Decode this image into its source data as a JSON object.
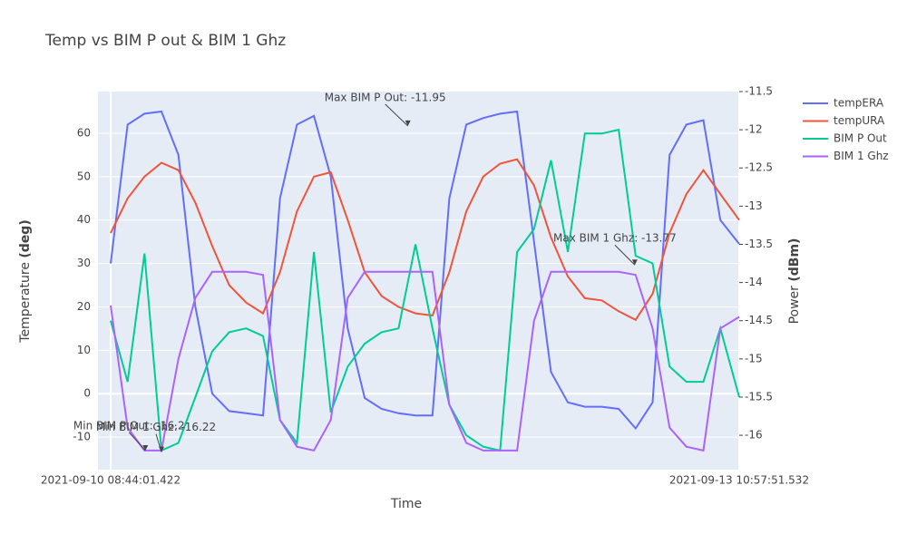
{
  "chart_data": {
    "type": "line",
    "title": "Temp vs BIM P out & BIM 1 Ghz",
    "xlabel": "Time",
    "ylabel": {
      "text": "Temperature",
      "unit": "(deg)"
    },
    "y2label": {
      "text": "Power",
      "unit": "(dBm)"
    },
    "x": [
      "2021-09-10 08:44:01.422",
      "2021-09-10 10:44",
      "2021-09-10 12:44",
      "2021-09-10 14:44",
      "2021-09-10 16:44",
      "2021-09-10 18:44",
      "2021-09-10 20:44",
      "2021-09-10 22:44",
      "2021-09-11 00:44",
      "2021-09-11 02:44",
      "2021-09-11 04:44",
      "2021-09-11 06:44",
      "2021-09-11 08:44",
      "2021-09-11 10:44",
      "2021-09-11 12:44",
      "2021-09-11 14:44",
      "2021-09-11 16:44",
      "2021-09-11 18:44",
      "2021-09-11 20:44",
      "2021-09-11 22:44",
      "2021-09-12 00:44",
      "2021-09-12 02:44",
      "2021-09-12 04:44",
      "2021-09-12 06:44",
      "2021-09-12 08:44",
      "2021-09-12 10:44",
      "2021-09-12 12:44",
      "2021-09-12 14:44",
      "2021-09-12 16:44",
      "2021-09-12 18:44",
      "2021-09-12 20:44",
      "2021-09-12 22:44",
      "2021-09-13 00:44",
      "2021-09-13 02:44",
      "2021-09-13 04:44",
      "2021-09-13 06:44",
      "2021-09-13 08:44",
      "2021-09-13 10:57:51.532"
    ],
    "xlim": [
      "2021-09-10 07:14",
      "2021-09-13 10:57:51.532"
    ],
    "xticks": [
      "2021-09-10 08:44:01.422",
      "2021-09-13 10:57:51.532"
    ],
    "ylim": [
      -17.5,
      69.6
    ],
    "yticks": [
      -10,
      0,
      10,
      20,
      30,
      40,
      50,
      60
    ],
    "y2lim": [
      -16.45,
      -11.5
    ],
    "y2ticks": [
      -16,
      -15.5,
      -15,
      -14.5,
      -14,
      -13.5,
      -13,
      -12.5,
      -12,
      -11.5
    ],
    "grid": true,
    "legend": "right",
    "series": [
      {
        "name": "tempERA",
        "color": "#636efa",
        "values": [
          30,
          62,
          64.5,
          65,
          55,
          20,
          0,
          -4,
          -4.5,
          -5,
          45,
          62,
          64,
          50,
          15,
          -1,
          -3.5,
          -4.5,
          -5,
          -5,
          45,
          62,
          63.5,
          64.5,
          65,
          35,
          5,
          -2,
          -3,
          -3,
          -3.5,
          -8,
          -2,
          55,
          62,
          63,
          40,
          34.5
        ]
      },
      {
        "name": "tempURA",
        "color": "#EF553B",
        "values": [
          37,
          45,
          50,
          53.2,
          51.5,
          44,
          34,
          25,
          21,
          18.5,
          28,
          42,
          50,
          51,
          40,
          28,
          22.5,
          20,
          18.5,
          18,
          28,
          42,
          50,
          53,
          54,
          48,
          36,
          27,
          22,
          21.5,
          19,
          17,
          23,
          37,
          46,
          51.5,
          46,
          40
        ]
      },
      {
        "name": "BIM P Out",
        "color": "#00cc96",
        "axis": "y2",
        "values": [
          -14.5,
          -15.3,
          -13.62,
          -16.2,
          -16.1,
          -15.5,
          -14.9,
          -14.65,
          -14.6,
          -14.7,
          -15.8,
          -16.1,
          -13.6,
          -15.7,
          -15.1,
          -14.8,
          -14.65,
          -14.6,
          -13.5,
          -14.6,
          -15.6,
          -16.0,
          -16.15,
          -16.2,
          -13.6,
          -13.3,
          -12.4,
          -13.6,
          -12.05,
          -12.05,
          -12.0,
          -13.65,
          -13.75,
          -15.1,
          -15.3,
          -15.3,
          -14.6,
          -15.5
        ]
      },
      {
        "name": "BIM 1 Ghz",
        "color": "#ab63fa",
        "axis": "y2",
        "values": [
          -14.3,
          -15.9,
          -16.2,
          -16.2,
          -15.0,
          -14.2,
          -13.86,
          -13.86,
          -13.86,
          -13.9,
          -15.8,
          -16.15,
          -16.2,
          -15.8,
          -14.2,
          -13.86,
          -13.86,
          -13.86,
          -13.86,
          -13.86,
          -15.6,
          -16.1,
          -16.2,
          -16.2,
          -16.2,
          -14.5,
          -13.86,
          -13.86,
          -13.86,
          -13.86,
          -13.86,
          -13.9,
          -14.6,
          -15.9,
          -16.15,
          -16.2,
          -14.6,
          -14.45
        ]
      }
    ],
    "annotations": [
      {
        "text": "Max BIM P Out: -11.95",
        "x": "2021-09-11 19:50",
        "y": -11.95,
        "axis": "y2"
      },
      {
        "text": "Max BIM 1 Ghz: -13.77",
        "x": "2021-09-12 22:38",
        "y": -13.77,
        "axis": "y2"
      },
      {
        "text": "Min BIM P Out: -16.2",
        "x": "2021-09-10 12:50",
        "y": -16.2,
        "axis": "y2"
      },
      {
        "text": "Min BIM 1 Ghz: -16.22",
        "x": "2021-09-10 14:44",
        "y": -16.22,
        "axis": "y2"
      }
    ]
  }
}
